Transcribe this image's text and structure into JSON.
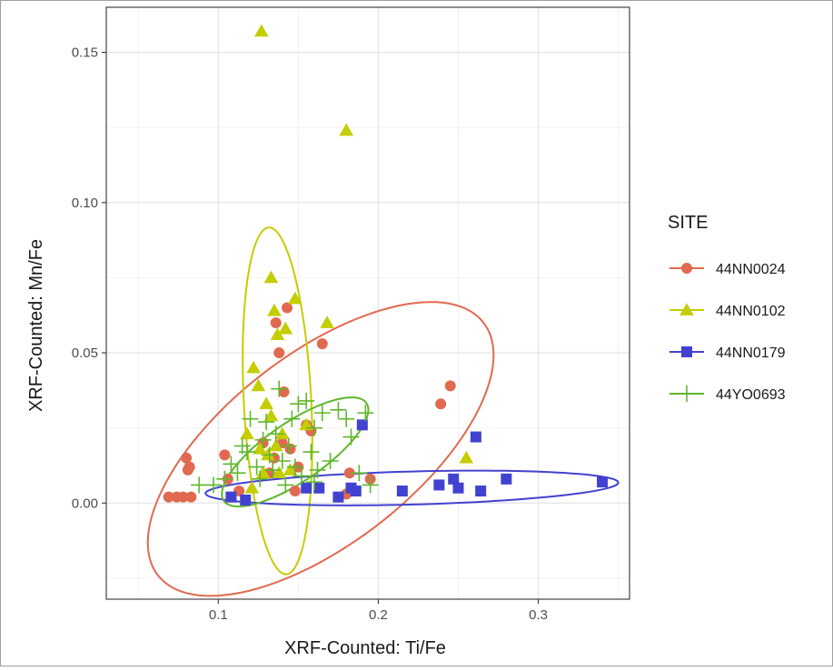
{
  "chart_data": {
    "type": "scatter",
    "title": "",
    "xlabel": "XRF-Counted: Ti/Fe",
    "ylabel": "XRF-Counted: Mn/Fe",
    "xlim": [
      0.03,
      0.357
    ],
    "ylim": [
      -0.032,
      0.165
    ],
    "x_ticks": [
      {
        "value": 0.1,
        "label": "0.1"
      },
      {
        "value": 0.2,
        "label": "0.2"
      },
      {
        "value": 0.3,
        "label": "0.3"
      }
    ],
    "y_ticks": [
      {
        "value": 0.0,
        "label": "0.00"
      },
      {
        "value": 0.05,
        "label": "0.05"
      },
      {
        "value": 0.1,
        "label": "0.10"
      },
      {
        "value": 0.15,
        "label": "0.15"
      }
    ],
    "grid": true,
    "legend": {
      "title": "SITE",
      "position": "right"
    },
    "series": [
      {
        "name": "44NN0024",
        "color": "#E0694F",
        "marker": "circle",
        "points": [
          [
            0.069,
            0.002
          ],
          [
            0.074,
            0.002
          ],
          [
            0.078,
            0.002
          ],
          [
            0.083,
            0.002
          ],
          [
            0.08,
            0.015
          ],
          [
            0.081,
            0.011
          ],
          [
            0.082,
            0.012
          ],
          [
            0.104,
            0.016
          ],
          [
            0.106,
            0.008
          ],
          [
            0.113,
            0.004
          ],
          [
            0.128,
            0.02
          ],
          [
            0.132,
            0.01
          ],
          [
            0.135,
            0.015
          ],
          [
            0.136,
            0.06
          ],
          [
            0.138,
            0.05
          ],
          [
            0.14,
            0.02
          ],
          [
            0.141,
            0.037
          ],
          [
            0.143,
            0.065
          ],
          [
            0.145,
            0.018
          ],
          [
            0.148,
            0.004
          ],
          [
            0.15,
            0.012
          ],
          [
            0.155,
            0.026
          ],
          [
            0.158,
            0.024
          ],
          [
            0.165,
            0.053
          ],
          [
            0.18,
            0.003
          ],
          [
            0.182,
            0.01
          ],
          [
            0.195,
            0.008
          ],
          [
            0.239,
            0.033
          ],
          [
            0.245,
            0.039
          ]
        ]
      },
      {
        "name": "44NN0102",
        "color": "#C4CD00",
        "marker": "triangle",
        "points": [
          [
            0.127,
            0.157
          ],
          [
            0.18,
            0.124
          ],
          [
            0.133,
            0.075
          ],
          [
            0.148,
            0.068
          ],
          [
            0.135,
            0.064
          ],
          [
            0.168,
            0.06
          ],
          [
            0.142,
            0.058
          ],
          [
            0.137,
            0.056
          ],
          [
            0.122,
            0.045
          ],
          [
            0.125,
            0.039
          ],
          [
            0.13,
            0.033
          ],
          [
            0.133,
            0.029
          ],
          [
            0.14,
            0.023
          ],
          [
            0.155,
            0.026
          ],
          [
            0.118,
            0.023
          ],
          [
            0.126,
            0.018
          ],
          [
            0.131,
            0.016
          ],
          [
            0.136,
            0.019
          ],
          [
            0.128,
            0.01
          ],
          [
            0.138,
            0.01
          ],
          [
            0.145,
            0.011
          ],
          [
            0.121,
            0.005
          ],
          [
            0.255,
            0.015
          ]
        ]
      },
      {
        "name": "44NN0179",
        "color": "#4242D0",
        "marker": "square",
        "points": [
          [
            0.108,
            0.002
          ],
          [
            0.117,
            0.001
          ],
          [
            0.155,
            0.005
          ],
          [
            0.163,
            0.005
          ],
          [
            0.175,
            0.002
          ],
          [
            0.183,
            0.005
          ],
          [
            0.186,
            0.004
          ],
          [
            0.19,
            0.026
          ],
          [
            0.215,
            0.004
          ],
          [
            0.238,
            0.006
          ],
          [
            0.247,
            0.008
          ],
          [
            0.25,
            0.005
          ],
          [
            0.261,
            0.022
          ],
          [
            0.264,
            0.004
          ],
          [
            0.28,
            0.008
          ],
          [
            0.34,
            0.007
          ]
        ]
      },
      {
        "name": "44YO0693",
        "color": "#5FB62C",
        "marker": "plus",
        "points": [
          [
            0.088,
            0.006
          ],
          [
            0.097,
            0.006
          ],
          [
            0.104,
            0.008
          ],
          [
            0.108,
            0.013
          ],
          [
            0.112,
            0.01
          ],
          [
            0.115,
            0.019
          ],
          [
            0.118,
            0.017
          ],
          [
            0.12,
            0.028
          ],
          [
            0.124,
            0.012
          ],
          [
            0.126,
            0.008
          ],
          [
            0.128,
            0.021
          ],
          [
            0.13,
            0.027
          ],
          [
            0.132,
            0.016
          ],
          [
            0.134,
            0.011
          ],
          [
            0.136,
            0.023
          ],
          [
            0.138,
            0.038
          ],
          [
            0.14,
            0.014
          ],
          [
            0.142,
            0.006
          ],
          [
            0.144,
            0.019
          ],
          [
            0.146,
            0.028
          ],
          [
            0.148,
            0.012
          ],
          [
            0.15,
            0.033
          ],
          [
            0.152,
            0.009
          ],
          [
            0.155,
            0.034
          ],
          [
            0.158,
            0.017
          ],
          [
            0.16,
            0.025
          ],
          [
            0.162,
            0.011
          ],
          [
            0.165,
            0.03
          ],
          [
            0.17,
            0.014
          ],
          [
            0.175,
            0.031
          ],
          [
            0.18,
            0.028
          ],
          [
            0.183,
            0.022
          ],
          [
            0.188,
            0.01
          ],
          [
            0.192,
            0.03
          ],
          [
            0.195,
            0.006
          ],
          [
            0.16,
            0.007
          ]
        ]
      }
    ],
    "ellipses": [
      {
        "series": "44NN0024",
        "cx": 0.164,
        "cy": 0.018,
        "rx": 0.113,
        "ry": 0.036,
        "angle_deg": 18
      },
      {
        "series": "44NN0102",
        "cx": 0.137,
        "cy": 0.034,
        "rx": 0.021,
        "ry": 0.058,
        "angle_deg": 6
      },
      {
        "series": "44NN0179",
        "cx": 0.221,
        "cy": 0.005,
        "rx": 0.129,
        "ry": 0.0055,
        "angle_deg": 0.8
      },
      {
        "series": "44YO0693",
        "cx": 0.148,
        "cy": 0.017,
        "rx": 0.048,
        "ry": 0.011,
        "angle_deg": 18
      }
    ]
  }
}
